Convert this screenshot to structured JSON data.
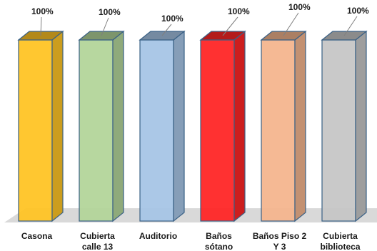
{
  "chart_data": {
    "type": "bar",
    "style": "3d-columns",
    "title": "",
    "xlabel": "",
    "ylabel": "",
    "ylim": [
      0,
      100
    ],
    "grid": false,
    "legend": "none",
    "categories": [
      [
        "Casona"
      ],
      [
        "Cubierta",
        "calle 13"
      ],
      [
        "Auditorio"
      ],
      [
        "Baños",
        "sótano"
      ],
      [
        "Baños Piso 2",
        "Y 3"
      ],
      [
        "Cubierta",
        "biblioteca"
      ]
    ],
    "values": [
      100,
      100,
      100,
      100,
      100,
      100
    ],
    "data_labels": [
      "100%",
      "100%",
      "100%",
      "100%",
      "100%",
      "100%"
    ],
    "colors": [
      "#FFC425",
      "#B3D59A",
      "#A7C5E6",
      "#FF2626",
      "#F4B58E",
      "#C6C6C6"
    ],
    "edge_color": "#3A6186",
    "floor_color": "#D9D9D9"
  }
}
